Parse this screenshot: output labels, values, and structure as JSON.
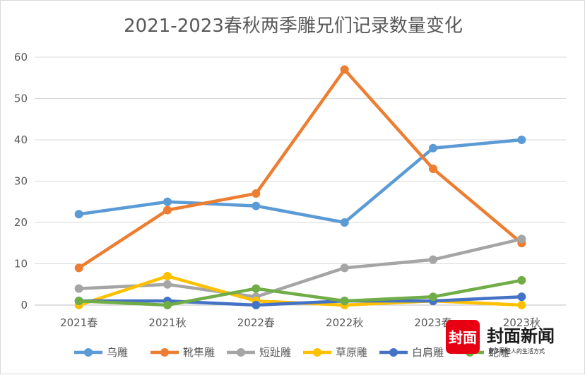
{
  "chart_data": {
    "type": "line",
    "title": "2021-2023春秋两季雕兄们记录数量变化",
    "xlabel": "",
    "ylabel": "",
    "categories": [
      "2021春",
      "2021秋",
      "2022春",
      "2022秋",
      "2023春",
      "2023秋"
    ],
    "ylim": [
      0,
      60
    ],
    "yticks": [
      0,
      10,
      20,
      30,
      40,
      50,
      60
    ],
    "grid": true,
    "legend": "bottom",
    "series": [
      {
        "name": "乌雕",
        "color": "#5b9bd5",
        "values": [
          22,
          25,
          24,
          20,
          38,
          40
        ]
      },
      {
        "name": "靴隼雕",
        "color": "#ed7d31",
        "values": [
          9,
          23,
          27,
          57,
          33,
          15
        ]
      },
      {
        "name": "短趾雕",
        "color": "#a5a5a5",
        "values": [
          4,
          5,
          2,
          9,
          11,
          16
        ]
      },
      {
        "name": "草原雕",
        "color": "#ffc000",
        "values": [
          0,
          7,
          1,
          0,
          1,
          0
        ]
      },
      {
        "name": "白肩雕",
        "color": "#4472c4",
        "values": [
          1,
          1,
          0,
          1,
          1,
          2
        ]
      },
      {
        "name": "蛇雕",
        "color": "#70ad47",
        "values": [
          1,
          0,
          4,
          1,
          2,
          6
        ]
      }
    ]
  },
  "watermark": {
    "logo_text": "封面",
    "brand_text": "封面新闻",
    "tagline": "更多年轻人的生活方式"
  }
}
